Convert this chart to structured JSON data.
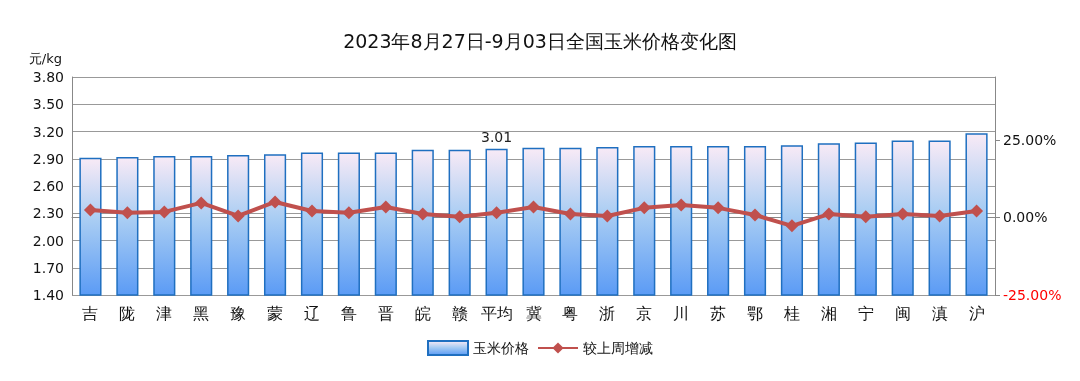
{
  "chart_data": {
    "type": "bar",
    "title": "2023年8月27日-9月03日全国玉米价格变化图",
    "ylabel": "元/kg",
    "categories": [
      "吉",
      "陇",
      "津",
      "黑",
      "豫",
      "蒙",
      "辽",
      "鲁",
      "晋",
      "皖",
      "赣",
      "平均",
      "冀",
      "粤",
      "浙",
      "京",
      "川",
      "苏",
      "鄂",
      "桂",
      "湘",
      "宁",
      "闽",
      "滇",
      "沪"
    ],
    "series": [
      {
        "name": "玉米价格",
        "color": "#1f6fc0",
        "values": [
          2.91,
          2.92,
          2.93,
          2.93,
          2.94,
          2.95,
          2.97,
          2.97,
          2.97,
          3.0,
          3.0,
          3.01,
          3.02,
          3.02,
          3.03,
          3.04,
          3.04,
          3.04,
          3.04,
          3.05,
          3.07,
          3.08,
          3.1,
          3.1,
          3.18
        ],
        "value_labels": [
          null,
          null,
          null,
          null,
          null,
          null,
          null,
          null,
          null,
          null,
          null,
          "3.01",
          null,
          null,
          null,
          null,
          null,
          null,
          null,
          null,
          null,
          null,
          null,
          null,
          null
        ]
      },
      {
        "name": "较上周增减",
        "type": "line",
        "axis": "y2",
        "color": "#c0504d",
        "values": [
          2.4,
          1.5,
          1.8,
          4.7,
          0.5,
          5.0,
          2.1,
          1.5,
          3.4,
          1.1,
          0.2,
          1.5,
          3.4,
          1.1,
          0.5,
          3.1,
          4.0,
          3.1,
          0.8,
          -2.7,
          1.1,
          0.2,
          1.1,
          0.5,
          2.1
        ]
      }
    ],
    "ylim": [
      1.4,
      3.8
    ],
    "yticks": [
      {
        "value": 1.4,
        "label": "1.40"
      },
      {
        "value": 1.7,
        "label": "1.70"
      },
      {
        "value": 2.0,
        "label": "2.00"
      },
      {
        "value": 2.3,
        "label": "2.30"
      },
      {
        "value": 2.6,
        "label": "2.60"
      },
      {
        "value": 2.9,
        "label": "2.90"
      },
      {
        "value": 3.2,
        "label": "3.20"
      },
      {
        "value": 3.5,
        "label": "3.50"
      },
      {
        "value": 3.8,
        "label": "3.80"
      }
    ],
    "y2lim": [
      -25,
      45.3
    ],
    "y2ticks": [
      {
        "value": -25,
        "label": "-25.00%"
      },
      {
        "value": 0,
        "label": "0.00%"
      },
      {
        "value": 25,
        "label": "25.00%"
      }
    ],
    "grid": "y",
    "legend": "bottom",
    "marker": "diamond",
    "line_style": "solid"
  }
}
